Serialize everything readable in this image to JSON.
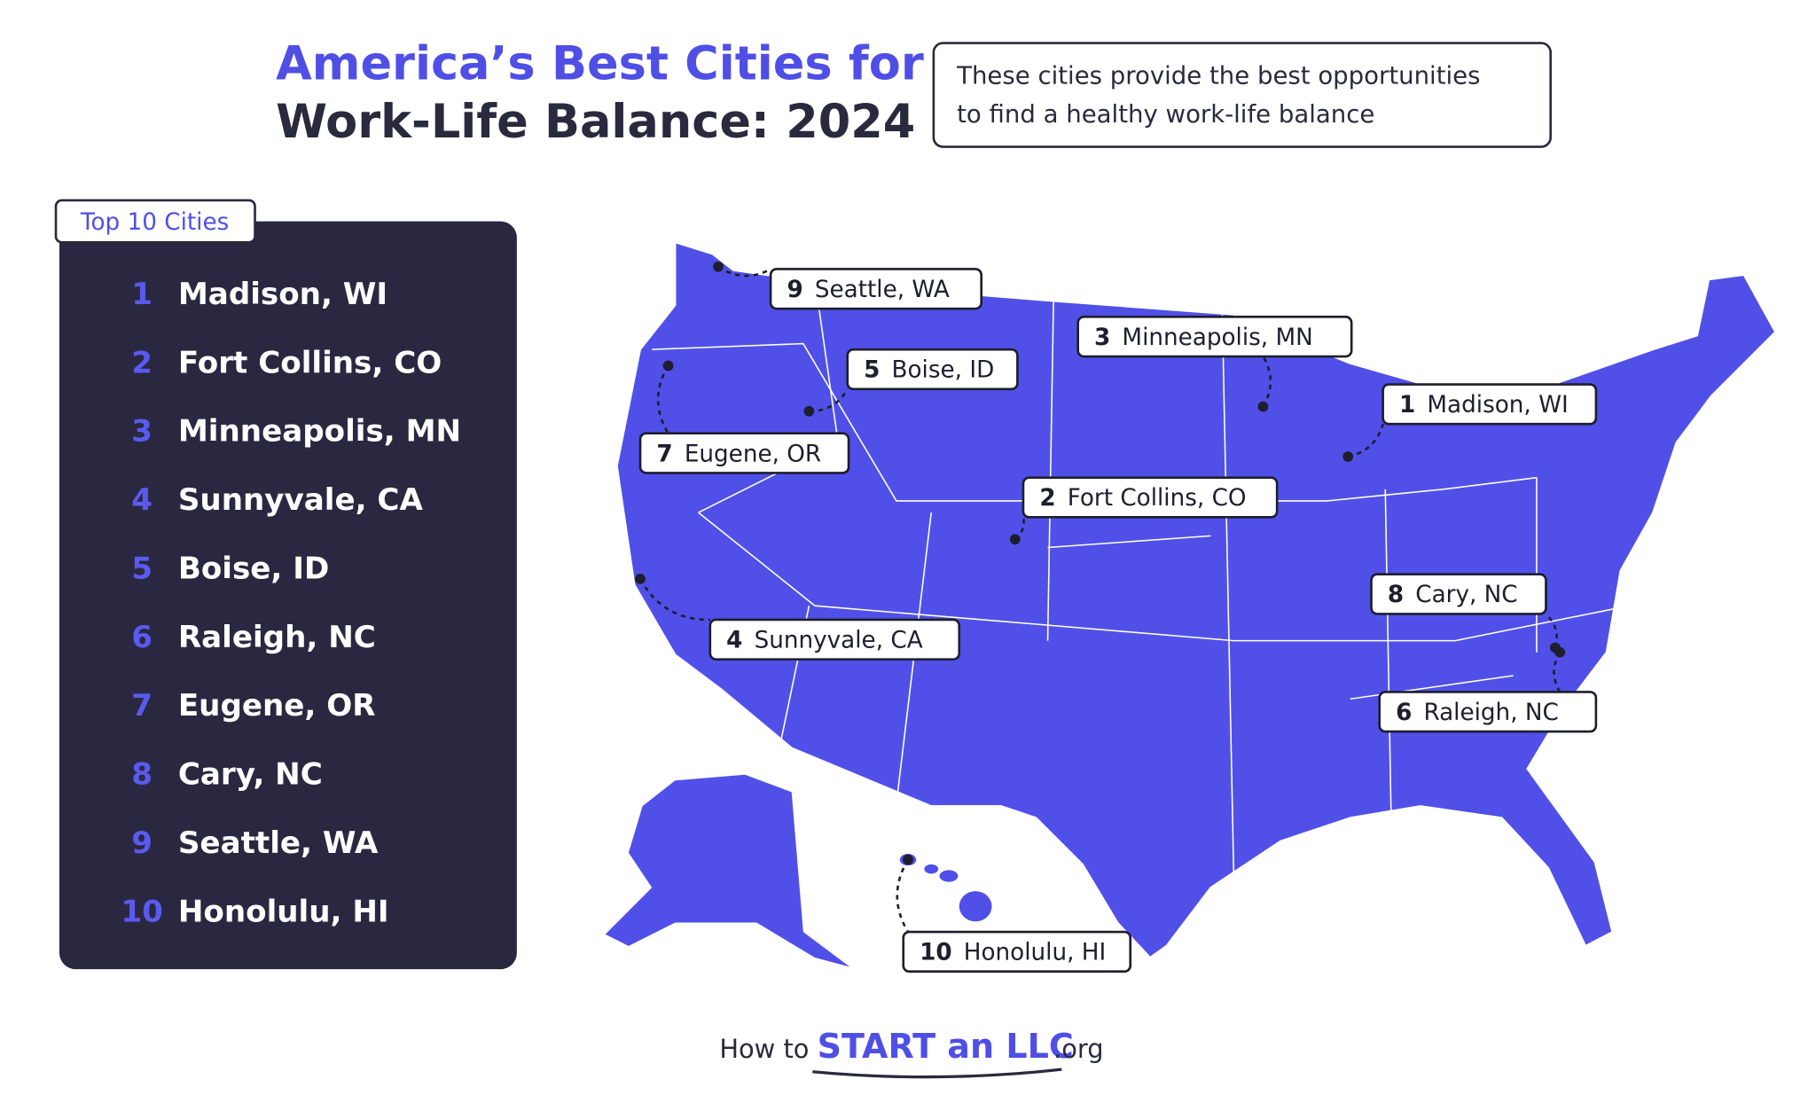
{
  "header": {
    "title_line1": "America’s Best Cities for",
    "title_line2": "Work-Life Balance:  2024",
    "subtitle_line1": "These cities provide the best opportunities",
    "subtitle_line2": "to find a healthy work-life balance"
  },
  "list": {
    "title": "Top 10 Cities",
    "items": [
      {
        "rank": "1",
        "city": "Madison, WI"
      },
      {
        "rank": "2",
        "city": "Fort Collins, CO"
      },
      {
        "rank": "3",
        "city": "Minneapolis, MN"
      },
      {
        "rank": "4",
        "city": "Sunnyvale, CA"
      },
      {
        "rank": "5",
        "city": "Boise, ID"
      },
      {
        "rank": "6",
        "city": "Raleigh, NC"
      },
      {
        "rank": "7",
        "city": "Eugene, OR"
      },
      {
        "rank": "8",
        "city": "Cary, NC"
      },
      {
        "rank": "9",
        "city": "Seattle, WA"
      },
      {
        "rank": "10",
        "city": "Honolulu, HI"
      }
    ]
  },
  "logo": {
    "prefix": "How to",
    "brand": "START an LLC",
    "suffix": ".org"
  }
}
